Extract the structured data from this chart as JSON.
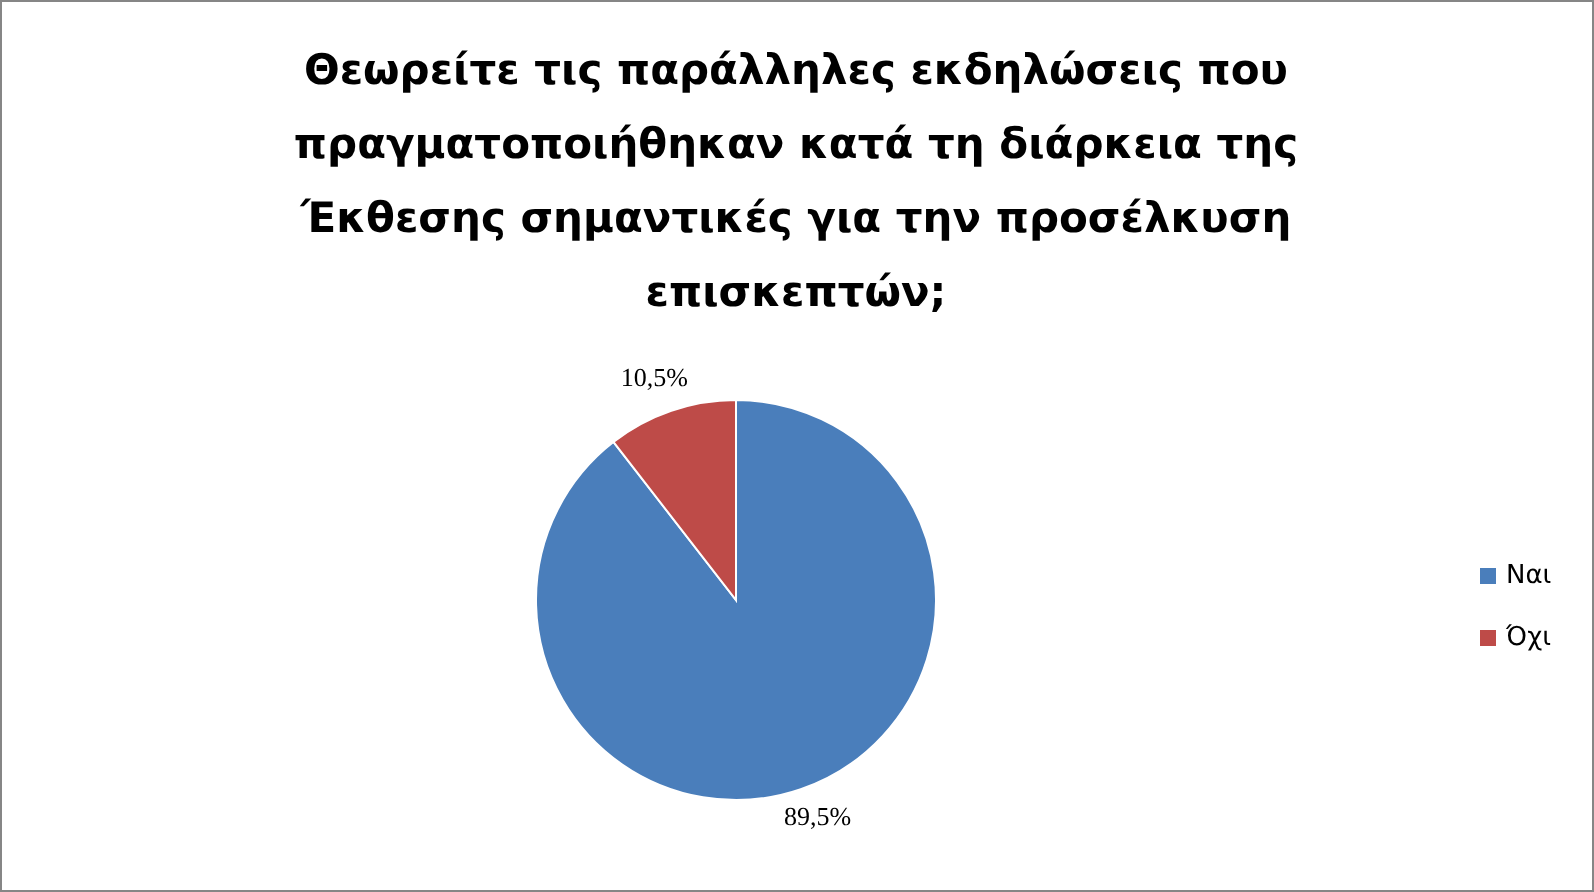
{
  "chart_data": {
    "type": "pie",
    "title": "Θεωρείτε τις παράλληλες εκδηλώσεις που πραγματοποιήθηκαν κατά τη διάρκεια της Έκθεσης σημαντικές για την προσέλκυση επισκεπτών;",
    "categories": [
      "Ναι",
      "Όχι"
    ],
    "values": [
      89.5,
      10.5
    ],
    "colors": [
      "#4a7ebb",
      "#be4b48"
    ],
    "value_labels": [
      "89,5%",
      "10,5%"
    ],
    "legend": "right"
  }
}
